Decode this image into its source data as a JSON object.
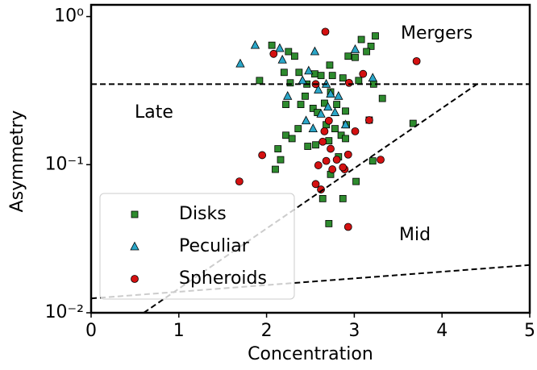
{
  "chart_data": {
    "type": "scatter",
    "xlabel": "Concentration",
    "ylabel": "Asymmetry",
    "xlim": [
      0,
      5
    ],
    "ylim": [
      0.01,
      1.2
    ],
    "log_y": true,
    "xticks": [
      0,
      1,
      2,
      3,
      4,
      5
    ],
    "yticks": [
      {
        "value": 0.01,
        "label": "10⁻²"
      },
      {
        "value": 0.1,
        "label": "10⁻¹"
      },
      {
        "value": 1,
        "label": "10⁰"
      }
    ],
    "legend": "lower left",
    "annotations": [
      "Late",
      "Mergers",
      "Mid"
    ],
    "lines": [
      {
        "color": "#000000",
        "x": [
          0,
          5
        ],
        "y": [
          0.35,
          0.35
        ]
      },
      {
        "color": "#000000",
        "x": [
          0.6,
          4.4
        ],
        "y": [
          0.01,
          0.35
        ]
      },
      {
        "color": "#000000",
        "x": [
          0,
          5
        ],
        "y": [
          0.0125,
          0.021
        ]
      }
    ],
    "series": [
      {
        "name": "Disks",
        "color": "#2e8b2e",
        "marker": "square",
        "x": [
          1.92,
          2.06,
          2.25,
          2.32,
          2.2,
          2.27,
          2.37,
          2.46,
          2.55,
          2.62,
          2.72,
          2.75,
          2.87,
          3.01,
          2.93,
          3.08,
          3.19,
          3.24,
          3.14,
          3.05,
          3.22,
          3.32,
          2.22,
          2.39,
          2.44,
          2.53,
          2.58,
          2.66,
          2.73,
          2.8,
          2.9,
          2.68,
          2.78,
          2.85,
          2.91,
          2.71,
          2.9,
          3.17,
          3.21,
          2.22,
          2.29,
          2.36,
          2.13,
          2.47,
          2.56,
          2.82,
          2.16,
          2.1,
          2.73,
          3.02,
          2.64,
          2.87,
          2.71,
          3.67
        ],
        "values": [
          0.37,
          0.64,
          0.58,
          0.54,
          0.42,
          0.357,
          0.42,
          0.35,
          0.41,
          0.4,
          0.47,
          0.4,
          0.385,
          0.53,
          0.54,
          0.7,
          0.63,
          0.74,
          0.58,
          0.37,
          0.35,
          0.28,
          0.255,
          0.255,
          0.29,
          0.24,
          0.225,
          0.26,
          0.31,
          0.255,
          0.23,
          0.186,
          0.175,
          0.158,
          0.186,
          0.145,
          0.15,
          0.2,
          0.106,
          0.158,
          0.15,
          0.175,
          0.128,
          0.133,
          0.136,
          0.113,
          0.108,
          0.093,
          0.086,
          0.077,
          0.059,
          0.059,
          0.04,
          0.19
        ]
      },
      {
        "name": "Peculiar",
        "color": "#2aa6c8",
        "marker": "triangle",
        "x": [
          1.7,
          1.87,
          2.15,
          2.18,
          2.24,
          2.41,
          2.48,
          2.59,
          2.68,
          2.62,
          2.45,
          2.53,
          2.73,
          2.78,
          2.82,
          2.9,
          3.21,
          3.01,
          2.55,
          2.7
        ],
        "values": [
          0.48,
          0.64,
          0.61,
          0.51,
          0.29,
          0.37,
          0.43,
          0.32,
          0.35,
          0.22,
          0.198,
          0.175,
          0.3,
          0.225,
          0.29,
          0.186,
          0.385,
          0.6,
          0.58,
          0.245
        ]
      },
      {
        "name": "Spheroids",
        "color": "#d41111",
        "marker": "circle",
        "x": [
          1.69,
          1.95,
          2.08,
          2.67,
          2.56,
          2.94,
          3.1,
          3.17,
          3.3,
          3.71,
          2.93,
          2.73,
          2.68,
          2.59,
          2.56,
          2.62,
          2.75,
          2.8,
          2.89,
          2.66,
          2.93,
          3.01,
          2.71,
          2.64,
          2.87
        ],
        "values": [
          0.077,
          0.116,
          0.56,
          0.79,
          0.35,
          0.357,
          0.41,
          0.2,
          0.108,
          0.5,
          0.117,
          0.128,
          0.106,
          0.099,
          0.074,
          0.068,
          0.093,
          0.108,
          0.093,
          0.168,
          0.038,
          0.168,
          0.198,
          0.143,
          0.096
        ]
      }
    ]
  }
}
